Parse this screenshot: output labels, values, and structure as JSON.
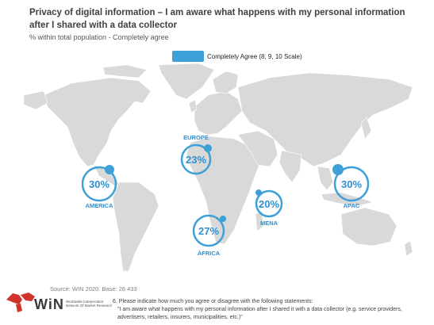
{
  "header": {
    "title": "Privacy of digital information – I am aware what happens with my personal information after I shared with a data collector",
    "subtitle": "% within total population - Completely agree"
  },
  "legend": {
    "label": "Completely Agree (8, 9, 10 Scale)",
    "color": "#3da0d6"
  },
  "regions": [
    {
      "name": "AMERICA",
      "value": "30%"
    },
    {
      "name": "EUROPE",
      "value": "23%"
    },
    {
      "name": "MENA",
      "value": "20%"
    },
    {
      "name": "ÁFRICA",
      "value": "27%"
    },
    {
      "name": "APAC",
      "value": "30%"
    }
  ],
  "colors": {
    "land": "#d9d9d9",
    "ring": "#3da0d6",
    "text": "#2f8fd0"
  },
  "footer": {
    "source": "Source: WIN 2020. Base: 26 433",
    "logo": {
      "text": "WiN",
      "sub": "Worldwide Independent Network Of Market Research"
    },
    "question_line1": "6. Please indicate how much you agree or disagree with the following statements:",
    "question_line2": "\"I am aware what happens with my personal information after I shared it with a data collector (e.g. service providers, advertisers, retailers, insurers, municipalities, etc.)\""
  }
}
